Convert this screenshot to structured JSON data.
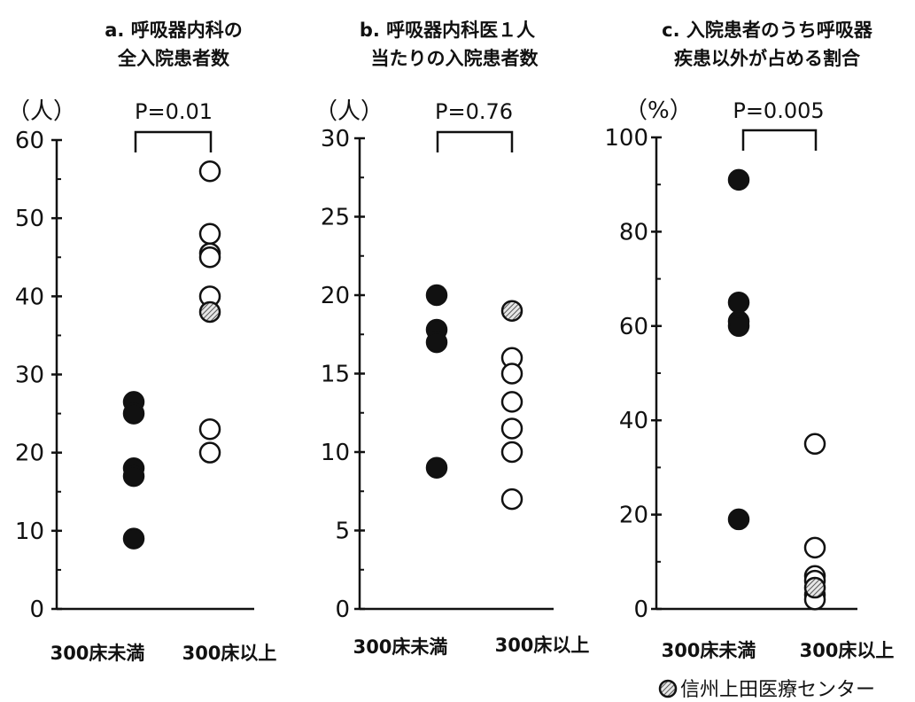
{
  "chart_data": [
    {
      "type": "scatter",
      "title": [
        "a. 呼吸器内科の",
        "全入院患者数"
      ],
      "unit_label": "（人）",
      "p_value": "P=0.01",
      "categories": [
        "300床未満",
        "300床以上"
      ],
      "ylim": [
        0,
        60
      ],
      "yticks": [
        "0",
        "10",
        "20",
        "30",
        "40",
        "50",
        "60"
      ],
      "ytick_values": [
        0,
        10,
        20,
        30,
        40,
        50,
        60
      ],
      "minor_step": 5,
      "series": [
        {
          "category": 0,
          "style": "filled",
          "values": [
            26.5,
            25,
            18,
            17,
            9
          ]
        },
        {
          "category": 1,
          "style": "open",
          "values": [
            56,
            48,
            45.5,
            45,
            40,
            23,
            20
          ]
        },
        {
          "category": 1,
          "style": "hatched",
          "values": [
            38
          ]
        }
      ]
    },
    {
      "type": "scatter",
      "title": [
        "b. 呼吸器内科医１人",
        "当たりの入院患者数"
      ],
      "unit_label": "（人）",
      "p_value": "P=0.76",
      "categories": [
        "300床未満",
        "300床以上"
      ],
      "ylim": [
        0,
        30
      ],
      "yticks": [
        "0",
        "5",
        "10",
        "15",
        "20",
        "25",
        "30"
      ],
      "ytick_values": [
        0,
        5,
        10,
        15,
        20,
        25,
        30
      ],
      "minor_step": 2.5,
      "series": [
        {
          "category": 0,
          "style": "filled",
          "values": [
            20,
            17.8,
            17,
            9
          ]
        },
        {
          "category": 1,
          "style": "open",
          "values": [
            16,
            15,
            13.2,
            11.5,
            10,
            7
          ]
        },
        {
          "category": 1,
          "style": "hatched",
          "values": [
            19
          ]
        }
      ]
    },
    {
      "type": "scatter",
      "title": [
        "c. 入院患者のうち呼吸器",
        "疾患以外が占める割合"
      ],
      "unit_label": "（%）",
      "p_value": "P=0.005",
      "categories": [
        "300床未満",
        "300床以上"
      ],
      "ylim": [
        0,
        100
      ],
      "yticks": [
        "0",
        "20",
        "40",
        "60",
        "80",
        "100"
      ],
      "ytick_values": [
        0,
        20,
        40,
        60,
        80,
        100
      ],
      "minor_step": 10,
      "series": [
        {
          "category": 0,
          "style": "filled",
          "values": [
            91,
            65,
            61,
            60,
            19
          ]
        },
        {
          "category": 1,
          "style": "open",
          "values": [
            35,
            13,
            7,
            6,
            3,
            2
          ]
        },
        {
          "category": 1,
          "style": "hatched",
          "values": [
            4.5
          ]
        }
      ]
    }
  ],
  "legend": {
    "label": "信州上田医療センター",
    "style": "hatched"
  },
  "colors": {
    "ink": "#111111",
    "hatch": "#777777",
    "paper": "#ffffff"
  }
}
